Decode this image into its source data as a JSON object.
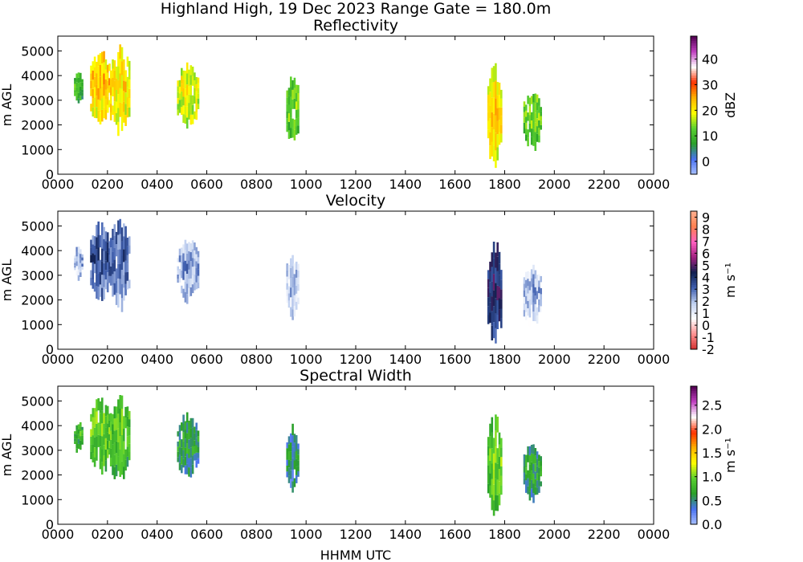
{
  "suptitle": "Highland High, 19 Dec 2023 Range Gate = 180.0m",
  "xlabel": "HHMM UTC",
  "colors": {
    "refl": [
      "#a8c0ff",
      "#4a72f0",
      "#2aa02a",
      "#5ad030",
      "#ffff00",
      "#ffb000",
      "#ff3000",
      "#ffffff",
      "#c040c0",
      "#500050"
    ],
    "vel": [
      "#d03030",
      "#ff9090",
      "#ffffff",
      "#c0d0f0",
      "#4060b0",
      "#102050",
      "#a02080",
      "#ff60c0",
      "#ff8050",
      "#ffb090"
    ],
    "sw": [
      "#a8c0ff",
      "#4a72f0",
      "#2aa02a",
      "#5ad030",
      "#ffff00",
      "#ffb000",
      "#ff3000",
      "#ffffff",
      "#c040c0",
      "#500050"
    ]
  },
  "chart_data": [
    {
      "type": "heatmap",
      "title": "Reflectivity",
      "xlabel": "",
      "ylabel": "m AGL",
      "x_ticks": [
        "0000",
        "0200",
        "0400",
        "0600",
        "0800",
        "1000",
        "1200",
        "1400",
        "1600",
        "1800",
        "2000",
        "2200",
        "0000"
      ],
      "x_range_hours": [
        0,
        24
      ],
      "y_ticks": [
        0,
        1000,
        2000,
        3000,
        4000,
        5000
      ],
      "ylim": [
        0,
        5600
      ],
      "colorbar": {
        "label": "dBZ",
        "range": [
          -5,
          49
        ],
        "ticks": [
          "0",
          "10",
          "20",
          "30",
          "40"
        ],
        "tick_values": [
          0,
          10,
          20,
          30,
          40
        ]
      },
      "cells": [
        {
          "t0": 0.65,
          "t1": 0.95,
          "hmin": 2900,
          "hmax": 4100,
          "level": 0.25
        },
        {
          "t0": 1.3,
          "t1": 2.1,
          "hmin": 2200,
          "hmax": 4900,
          "level": 0.47
        },
        {
          "t0": 2.1,
          "t1": 2.85,
          "hmin": 1800,
          "hmax": 5000,
          "level": 0.43
        },
        {
          "t0": 4.8,
          "t1": 5.65,
          "hmin": 2100,
          "hmax": 4300,
          "level": 0.4
        },
        {
          "t0": 9.2,
          "t1": 9.7,
          "hmin": 1400,
          "hmax": 3800,
          "level": 0.28
        },
        {
          "t0": 17.3,
          "t1": 17.85,
          "hmin": 500,
          "hmax": 4100,
          "level": 0.45
        },
        {
          "t0": 18.75,
          "t1": 19.45,
          "hmin": 1100,
          "hmax": 3200,
          "level": 0.3
        }
      ]
    },
    {
      "type": "heatmap",
      "title": "Velocity",
      "xlabel": "",
      "ylabel": "m AGL",
      "x_ticks": [
        "0000",
        "0200",
        "0400",
        "0600",
        "0800",
        "1000",
        "1200",
        "1400",
        "1600",
        "1800",
        "2000",
        "2200",
        "0000"
      ],
      "x_range_hours": [
        0,
        24
      ],
      "y_ticks": [
        0,
        1000,
        2000,
        3000,
        4000,
        5000
      ],
      "ylim": [
        0,
        5600
      ],
      "colorbar": {
        "label": "m s⁻¹",
        "range": [
          -2,
          9.5
        ],
        "ticks": [
          "-2",
          "-1",
          "0",
          "1",
          "2",
          "3",
          "4",
          "5",
          "6",
          "7",
          "8",
          "9"
        ],
        "tick_values": [
          -2,
          -1,
          0,
          1,
          2,
          3,
          4,
          5,
          6,
          7,
          8,
          9
        ]
      },
      "cells": [
        {
          "t0": 0.65,
          "t1": 0.95,
          "hmin": 2900,
          "hmax": 4100,
          "level": 0.32
        },
        {
          "t0": 1.3,
          "t1": 2.1,
          "hmin": 2100,
          "hmax": 4900,
          "level": 0.42
        },
        {
          "t0": 2.1,
          "t1": 2.85,
          "hmin": 1800,
          "hmax": 5000,
          "level": 0.4
        },
        {
          "t0": 4.8,
          "t1": 5.65,
          "hmin": 2100,
          "hmax": 4300,
          "level": 0.33
        },
        {
          "t0": 9.2,
          "t1": 9.7,
          "hmin": 1400,
          "hmax": 3800,
          "level": 0.29
        },
        {
          "t0": 17.3,
          "t1": 17.85,
          "hmin": 500,
          "hmax": 4100,
          "level": 0.5
        },
        {
          "t0": 18.75,
          "t1": 19.45,
          "hmin": 1100,
          "hmax": 3200,
          "level": 0.3
        }
      ]
    },
    {
      "type": "heatmap",
      "title": "Spectral Width",
      "xlabel": "HHMM UTC",
      "ylabel": "m AGL",
      "x_ticks": [
        "0000",
        "0200",
        "0400",
        "0600",
        "0800",
        "1000",
        "1200",
        "1400",
        "1600",
        "1800",
        "2000",
        "2200",
        "0000"
      ],
      "x_range_hours": [
        0,
        24
      ],
      "y_ticks": [
        0,
        1000,
        2000,
        3000,
        4000,
        5000
      ],
      "ylim": [
        0,
        5600
      ],
      "colorbar": {
        "label": "m s⁻¹",
        "range": [
          0,
          2.9
        ],
        "ticks": [
          "0.0",
          "0.5",
          "1.0",
          "1.5",
          "2.0",
          "2.5"
        ],
        "tick_values": [
          0,
          0.5,
          1.0,
          1.5,
          2.0,
          2.5
        ]
      },
      "cells": [
        {
          "t0": 0.65,
          "t1": 0.95,
          "hmin": 2900,
          "hmax": 4100,
          "level": 0.22
        },
        {
          "t0": 1.3,
          "t1": 2.1,
          "hmin": 2200,
          "hmax": 4900,
          "level": 0.28
        },
        {
          "t0": 2.1,
          "t1": 2.85,
          "hmin": 1800,
          "hmax": 5000,
          "level": 0.26
        },
        {
          "t0": 4.8,
          "t1": 5.65,
          "hmin": 2100,
          "hmax": 4300,
          "level": 0.18
        },
        {
          "t0": 9.2,
          "t1": 9.7,
          "hmin": 1400,
          "hmax": 3800,
          "level": 0.14
        },
        {
          "t0": 17.3,
          "t1": 17.85,
          "hmin": 500,
          "hmax": 4100,
          "level": 0.27
        },
        {
          "t0": 18.75,
          "t1": 19.45,
          "hmin": 1100,
          "hmax": 3200,
          "level": 0.18
        }
      ]
    }
  ]
}
